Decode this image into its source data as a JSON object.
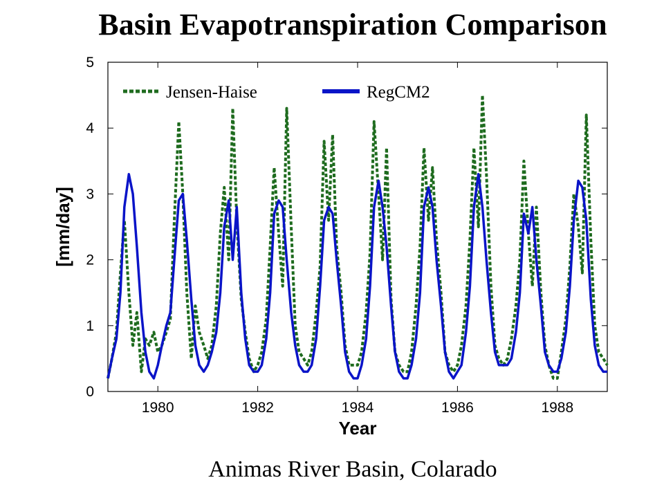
{
  "title": "Basin Evapotranspiration Comparison",
  "caption": "Animas River Basin, Colarado",
  "chart_data": {
    "type": "line",
    "xlabel": "Year",
    "ylabel": "[mm/day]",
    "xlim": [
      1979.0,
      1989.0
    ],
    "ylim": [
      0,
      5
    ],
    "xticks": [
      1980,
      1982,
      1984,
      1986,
      1988
    ],
    "yticks": [
      0,
      1,
      2,
      3,
      4,
      5
    ],
    "grid": false,
    "legend_position": "top-left inside",
    "series": [
      {
        "name": "Jensen-Haise",
        "color": "#1e6b1e",
        "style": "dotted",
        "x": [
          1979.0,
          1979.08,
          1979.17,
          1979.25,
          1979.33,
          1979.42,
          1979.5,
          1979.58,
          1979.67,
          1979.75,
          1979.83,
          1979.92,
          1980.0,
          1980.08,
          1980.17,
          1980.25,
          1980.33,
          1980.42,
          1980.5,
          1980.58,
          1980.67,
          1980.75,
          1980.83,
          1980.92,
          1981.0,
          1981.08,
          1981.17,
          1981.25,
          1981.33,
          1981.42,
          1981.5,
          1981.58,
          1981.67,
          1981.75,
          1981.83,
          1981.92,
          1982.0,
          1982.08,
          1982.17,
          1982.25,
          1982.33,
          1982.42,
          1982.5,
          1982.58,
          1982.67,
          1982.75,
          1982.83,
          1982.92,
          1983.0,
          1983.08,
          1983.17,
          1983.25,
          1983.33,
          1983.42,
          1983.5,
          1983.58,
          1983.67,
          1983.75,
          1983.83,
          1983.92,
          1984.0,
          1984.08,
          1984.17,
          1984.25,
          1984.33,
          1984.42,
          1984.5,
          1984.58,
          1984.67,
          1984.75,
          1984.83,
          1984.92,
          1985.0,
          1985.08,
          1985.17,
          1985.25,
          1985.33,
          1985.42,
          1985.5,
          1985.58,
          1985.67,
          1985.75,
          1985.83,
          1985.92,
          1986.0,
          1986.08,
          1986.17,
          1986.25,
          1986.33,
          1986.42,
          1986.5,
          1986.58,
          1986.67,
          1986.75,
          1986.83,
          1986.92,
          1987.0,
          1987.08,
          1987.17,
          1987.25,
          1987.33,
          1987.42,
          1987.5,
          1987.58,
          1987.67,
          1987.75,
          1987.83,
          1987.92,
          1988.0,
          1988.08,
          1988.17,
          1988.25,
          1988.33,
          1988.42,
          1988.5,
          1988.58,
          1988.67,
          1988.75,
          1988.83,
          1988.92,
          1989.0
        ],
        "values": [
          0.2,
          0.5,
          0.9,
          1.8,
          2.6,
          1.5,
          0.7,
          1.2,
          0.3,
          0.8,
          0.7,
          0.9,
          0.6,
          0.7,
          0.9,
          1.1,
          2.6,
          4.1,
          3.0,
          1.5,
          0.5,
          1.3,
          0.9,
          0.7,
          0.5,
          0.7,
          1.3,
          2.4,
          3.1,
          2.0,
          4.3,
          2.6,
          1.4,
          0.9,
          0.5,
          0.3,
          0.4,
          0.6,
          1.1,
          2.2,
          3.4,
          2.4,
          1.6,
          4.3,
          2.5,
          1.0,
          0.6,
          0.5,
          0.4,
          0.6,
          1.2,
          1.9,
          3.8,
          2.6,
          3.9,
          2.2,
          1.5,
          0.7,
          0.4,
          0.4,
          0.4,
          0.6,
          1.2,
          2.1,
          4.1,
          3.0,
          2.0,
          3.7,
          1.4,
          0.6,
          0.4,
          0.3,
          0.3,
          0.6,
          1.3,
          2.2,
          3.7,
          2.6,
          3.4,
          2.3,
          1.5,
          0.6,
          0.4,
          0.3,
          0.4,
          0.7,
          1.3,
          2.3,
          3.7,
          2.5,
          4.5,
          3.3,
          1.6,
          0.7,
          0.5,
          0.4,
          0.5,
          0.8,
          1.3,
          2.0,
          3.5,
          2.4,
          1.6,
          2.8,
          1.5,
          0.7,
          0.4,
          0.2,
          0.2,
          0.6,
          1.1,
          1.9,
          3.0,
          2.5,
          1.8,
          4.2,
          2.3,
          1.0,
          0.6,
          0.5,
          0.4
        ]
      },
      {
        "name": "RegCM2",
        "color": "#0a14c8",
        "style": "solid",
        "x": [
          1979.0,
          1979.08,
          1979.17,
          1979.25,
          1979.33,
          1979.42,
          1979.5,
          1979.58,
          1979.67,
          1979.75,
          1979.83,
          1979.92,
          1980.0,
          1980.08,
          1980.17,
          1980.25,
          1980.33,
          1980.42,
          1980.5,
          1980.58,
          1980.67,
          1980.75,
          1980.83,
          1980.92,
          1981.0,
          1981.08,
          1981.17,
          1981.25,
          1981.33,
          1981.42,
          1981.5,
          1981.58,
          1981.67,
          1981.75,
          1981.83,
          1981.92,
          1982.0,
          1982.08,
          1982.17,
          1982.25,
          1982.33,
          1982.42,
          1982.5,
          1982.58,
          1982.67,
          1982.75,
          1982.83,
          1982.92,
          1983.0,
          1983.08,
          1983.17,
          1983.25,
          1983.33,
          1983.42,
          1983.5,
          1983.58,
          1983.67,
          1983.75,
          1983.83,
          1983.92,
          1984.0,
          1984.08,
          1984.17,
          1984.25,
          1984.33,
          1984.42,
          1984.5,
          1984.58,
          1984.67,
          1984.75,
          1984.83,
          1984.92,
          1985.0,
          1985.08,
          1985.17,
          1985.25,
          1985.33,
          1985.42,
          1985.5,
          1985.58,
          1985.67,
          1985.75,
          1985.83,
          1985.92,
          1986.0,
          1986.08,
          1986.17,
          1986.25,
          1986.33,
          1986.42,
          1986.5,
          1986.58,
          1986.67,
          1986.75,
          1986.83,
          1986.92,
          1987.0,
          1987.08,
          1987.17,
          1987.25,
          1987.33,
          1987.42,
          1987.5,
          1987.58,
          1987.67,
          1987.75,
          1987.83,
          1987.92,
          1988.0,
          1988.08,
          1988.17,
          1988.25,
          1988.33,
          1988.42,
          1988.5,
          1988.58,
          1988.67,
          1988.75,
          1988.83,
          1988.92,
          1989.0
        ],
        "values": [
          0.2,
          0.5,
          0.8,
          1.5,
          2.8,
          3.3,
          3.0,
          2.2,
          1.2,
          0.6,
          0.3,
          0.2,
          0.4,
          0.7,
          1.0,
          1.2,
          2.0,
          2.9,
          3.0,
          2.3,
          1.4,
          0.7,
          0.4,
          0.3,
          0.4,
          0.6,
          0.9,
          1.5,
          2.5,
          2.9,
          2.0,
          2.8,
          1.5,
          0.8,
          0.4,
          0.3,
          0.3,
          0.4,
          0.8,
          1.5,
          2.7,
          2.9,
          2.8,
          2.0,
          1.2,
          0.7,
          0.4,
          0.3,
          0.3,
          0.4,
          0.8,
          1.6,
          2.6,
          2.8,
          2.7,
          2.0,
          1.3,
          0.6,
          0.3,
          0.2,
          0.2,
          0.4,
          0.8,
          1.6,
          2.8,
          3.2,
          2.8,
          2.2,
          1.3,
          0.6,
          0.3,
          0.2,
          0.2,
          0.4,
          0.8,
          1.5,
          2.8,
          3.1,
          2.8,
          2.0,
          1.3,
          0.6,
          0.3,
          0.2,
          0.3,
          0.4,
          0.9,
          1.6,
          2.8,
          3.3,
          2.8,
          2.0,
          1.2,
          0.6,
          0.4,
          0.4,
          0.4,
          0.5,
          0.9,
          1.5,
          2.7,
          2.4,
          2.8,
          2.0,
          1.3,
          0.6,
          0.4,
          0.3,
          0.3,
          0.5,
          0.9,
          1.6,
          2.6,
          3.2,
          3.1,
          2.6,
          1.4,
          0.7,
          0.4,
          0.3,
          0.3
        ]
      }
    ]
  }
}
